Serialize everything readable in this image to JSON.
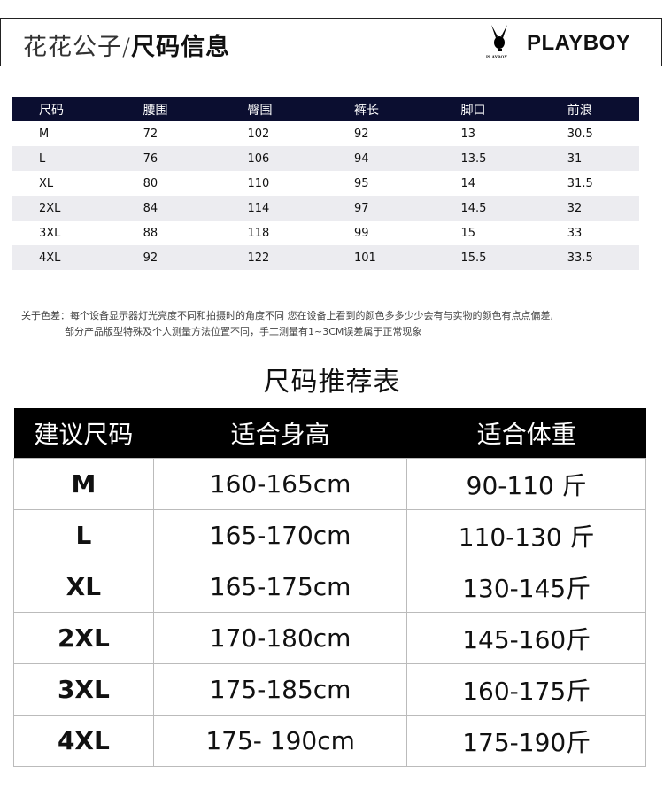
{
  "banner": {
    "title_light": "花花公子/",
    "title_bold": "尺码信息",
    "brand": "PLAYBOY",
    "logo_text": "PLAYBOY"
  },
  "size_table": {
    "headers": [
      "尺码",
      "腰围",
      "臀围",
      "裤长",
      "脚口",
      "前浪"
    ],
    "rows": [
      [
        "M",
        "72",
        "102",
        "92",
        "13",
        "30.5"
      ],
      [
        "L",
        "76",
        "106",
        "94",
        "13.5",
        "31"
      ],
      [
        "XL",
        "80",
        "110",
        "95",
        "14",
        "31.5"
      ],
      [
        "2XL",
        "84",
        "114",
        "97",
        "14.5",
        "32"
      ],
      [
        "3XL",
        "88",
        "118",
        "99",
        "15",
        "33"
      ],
      [
        "4XL",
        "92",
        "122",
        "101",
        "15.5",
        "33.5"
      ]
    ]
  },
  "note": {
    "line1": "关于色差：每个设备显示器灯光亮度不同和拍摄时的角度不同 您在设备上看到的颜色多多少少会有与实物的颜色有点点偏差,",
    "line2": "部分产品版型特殊及个人测量方法位置不同，手工测量有1~3CM误差属于正常现象"
  },
  "recommend": {
    "title": "尺码推荐表",
    "headers": [
      "建议尺码",
      "适合身高",
      "适合体重"
    ],
    "rows": [
      [
        "M",
        "160-165cm",
        "90-110 斤"
      ],
      [
        "L",
        "165-170cm",
        "110-130 斤"
      ],
      [
        "XL",
        "165-175cm",
        "130-145斤"
      ],
      [
        "2XL",
        "170-180cm",
        "145-160斤"
      ],
      [
        "3XL",
        "175-185cm",
        "160-175斤"
      ],
      [
        "4XL",
        "175- 190cm",
        "175-190斤"
      ]
    ]
  }
}
